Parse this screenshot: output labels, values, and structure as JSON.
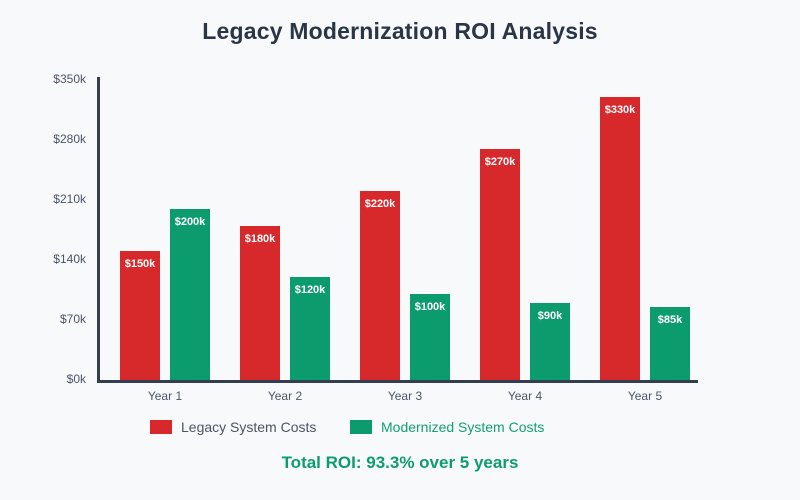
{
  "page": {
    "title": "Legacy Modernization ROI Analysis",
    "footer_roi": "Total ROI: 93.3% over 5 years"
  },
  "colors": {
    "background": "#f8f9fb",
    "axis": "#333e4f",
    "title_text": "#2a3647",
    "tick_text": "#4a5568",
    "legacy_red": "#d7282c",
    "modernized_green": "#0c9b6c",
    "legacy_legend_text": "#4a5568",
    "modernized_legend_text": "#13a075",
    "bar_value_text": "#ffffff",
    "roi_text": "#0e9c6c"
  },
  "chart_data": {
    "type": "bar",
    "title": "Legacy Modernization ROI Analysis",
    "categories": [
      "Year 1",
      "Year 2",
      "Year 3",
      "Year 4",
      "Year 5"
    ],
    "series": [
      {
        "name": "Legacy System Costs",
        "color": "#d7282c",
        "values": [
          150,
          180,
          220,
          270,
          330
        ],
        "bar_labels": [
          "$150k",
          "$180k",
          "$220k",
          "$270k",
          "$330k"
        ]
      },
      {
        "name": "Modernized System Costs",
        "color": "#0c9b6c",
        "values": [
          200,
          120,
          100,
          90,
          85
        ],
        "bar_labels": [
          "$200k",
          "$120k",
          "$100k",
          "$90k",
          "$85k"
        ]
      }
    ],
    "xlabel": "",
    "ylabel": "",
    "ylim": [
      0,
      350
    ],
    "yticks": [
      0,
      70,
      140,
      210,
      280,
      350
    ],
    "ytick_labels": [
      "$0k",
      "$70k",
      "$140k",
      "$210k",
      "$280k",
      "$350k"
    ],
    "grid": false,
    "legend_position": "bottom",
    "annotation": "Total ROI: 93.3% over 5 years"
  }
}
